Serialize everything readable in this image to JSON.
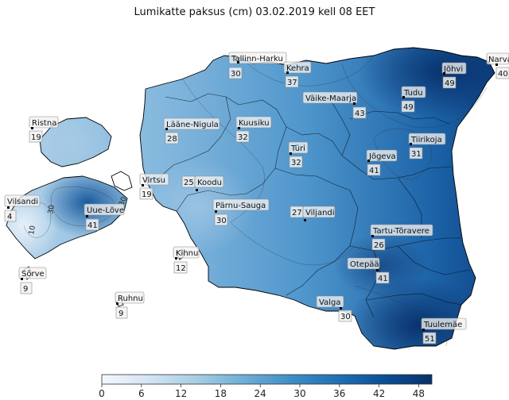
{
  "title": "Lumikatte paksus (cm) 03.02.2019 kell 08 EET",
  "colorbar": {
    "ticks": [
      "0",
      "6",
      "12",
      "18",
      "24",
      "30",
      "36",
      "42",
      "48"
    ],
    "min": 0,
    "max": 50,
    "colors": [
      "#f4f8fd",
      "#d3e4f3",
      "#a8cde4",
      "#6eaed6",
      "#3f8fc6",
      "#2070b4",
      "#0b4f95",
      "#08306b"
    ]
  },
  "stations": [
    {
      "id": "tallinn-harku",
      "name": "Tallinn-Harku",
      "value": "30"
    },
    {
      "id": "kehra",
      "name": "Kehra",
      "value": "37"
    },
    {
      "id": "narva",
      "name": "Narva",
      "value": "40"
    },
    {
      "id": "johvi",
      "name": "Jõhvi",
      "value": "49"
    },
    {
      "id": "tudu",
      "name": "Tudu",
      "value": "49"
    },
    {
      "id": "vaike-maarja",
      "name": "Väike-Maarja",
      "value": "43"
    },
    {
      "id": "ristna",
      "name": "Ristna",
      "value": "19"
    },
    {
      "id": "laane-nigula",
      "name": "Lääne-Nigula",
      "value": "28"
    },
    {
      "id": "kuusiku",
      "name": "Kuusiku",
      "value": "32"
    },
    {
      "id": "turi",
      "name": "Türi",
      "value": "32"
    },
    {
      "id": "jogeva",
      "name": "Jõgeva",
      "value": "41"
    },
    {
      "id": "tiirikoja",
      "name": "Tiirikoja",
      "value": "31"
    },
    {
      "id": "virtsu",
      "name": "Virtsu",
      "value": "19"
    },
    {
      "id": "koodu",
      "name": "Koodu",
      "value": "25"
    },
    {
      "id": "vilsandi",
      "name": "Vilsandi",
      "value": "4"
    },
    {
      "id": "uue-loove",
      "name": "Uue-Lõve",
      "value": "41"
    },
    {
      "id": "parnu-sauga",
      "name": "Pärnu-Sauga",
      "value": "30"
    },
    {
      "id": "viljandi",
      "name": "Viljandi",
      "value": "27"
    },
    {
      "id": "tartu-toravere",
      "name": "Tartu-Tõravere",
      "value": "26"
    },
    {
      "id": "kihnu",
      "name": "Kihnu",
      "value": "12"
    },
    {
      "id": "sorve",
      "name": "Sõrve",
      "value": "9"
    },
    {
      "id": "otepaa",
      "name": "Otepää",
      "value": "41"
    },
    {
      "id": "ruhnu",
      "name": "Ruhnu",
      "value": "9"
    },
    {
      "id": "valga",
      "name": "Valga",
      "value": "30"
    },
    {
      "id": "tuulemae",
      "name": "Tuulemäe",
      "value": "51"
    }
  ],
  "contour_labels": [
    "10",
    "30",
    "30"
  ]
}
